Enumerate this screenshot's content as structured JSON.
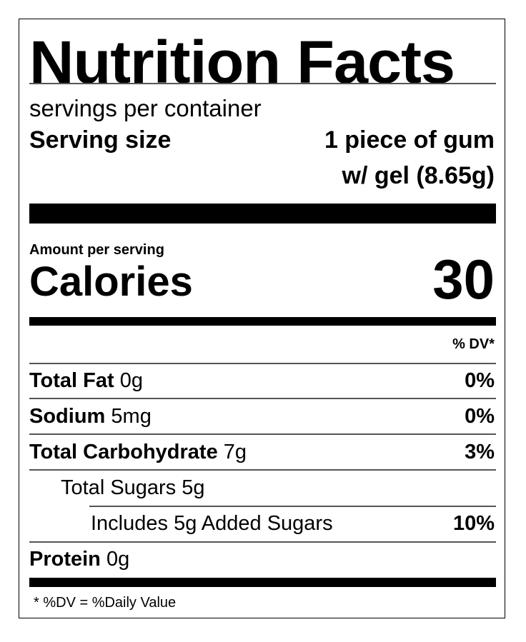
{
  "title": "Nutrition Facts",
  "servings_per_container": "servings per container",
  "serving_size": {
    "label": "Serving size",
    "value_line1": "1 piece of gum",
    "value_line2": "w/ gel (8.65g)"
  },
  "amount_per_serving": "Amount per serving",
  "calories": {
    "label": "Calories",
    "value": "30"
  },
  "dv_header": "% DV*",
  "nutrients": [
    {
      "name": "Total Fat",
      "amount": "0g",
      "dv": "0%"
    },
    {
      "name": "Sodium",
      "amount": "5mg",
      "dv": "0%"
    },
    {
      "name": "Total Carbohydrate",
      "amount": "7g",
      "dv": "3%"
    },
    {
      "name": "Total Sugars 5g",
      "amount": "",
      "dv": ""
    },
    {
      "name": "Includes 5g Added Sugars",
      "amount": "",
      "dv": "10%"
    },
    {
      "name": "Protein",
      "amount": "0g",
      "dv": ""
    }
  ],
  "footnote": "* %DV = %Daily Value"
}
